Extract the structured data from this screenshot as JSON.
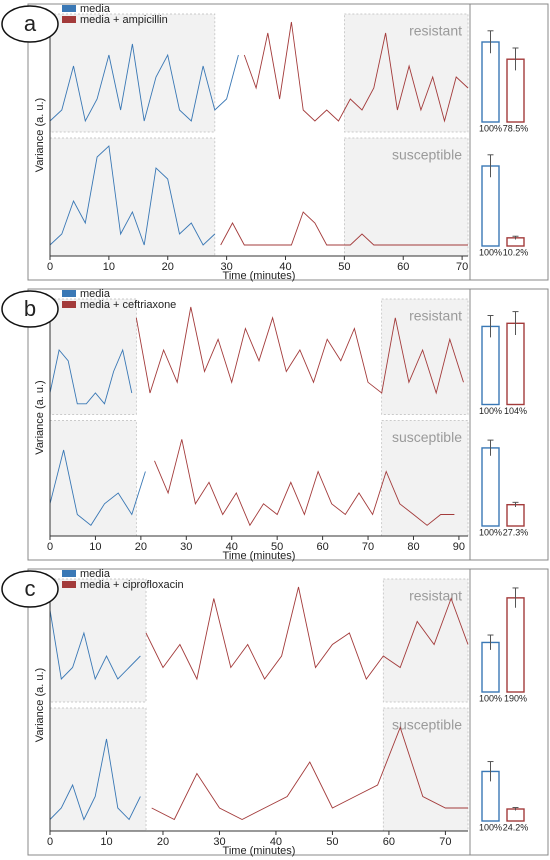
{
  "chart_data": [
    {
      "type": "line",
      "label": "a",
      "x_label": "Time (minutes)",
      "y_label": "Variance (a. u.)",
      "xlim": [
        0,
        71
      ],
      "xticks": [
        0,
        10,
        20,
        30,
        40,
        50,
        60,
        70
      ],
      "ylim": [
        0,
        10
      ],
      "legend": [
        {
          "name": "media",
          "color": "#3a78b5"
        },
        {
          "name": "media + ampicillin",
          "color": "#a33b3b"
        }
      ],
      "rows": [
        {
          "label": "resistant",
          "shaded": [
            [
              0,
              28
            ],
            [
              50,
              71
            ]
          ],
          "series": [
            {
              "x": [
                0,
                2,
                4,
                6,
                8,
                10,
                12,
                14,
                16,
                18,
                20,
                22,
                24,
                26,
                28,
                30,
                32
              ],
              "values": [
                1,
                2,
                6,
                1,
                3,
                7,
                2,
                8,
                1,
                5,
                7,
                2,
                1,
                6,
                2,
                3,
                7
              ]
            },
            {
              "x": [
                33,
                35,
                37,
                39,
                41,
                43,
                45,
                47,
                49,
                51,
                53,
                55,
                57,
                59,
                61,
                63,
                65,
                67,
                69,
                71
              ],
              "values": [
                7,
                4,
                9,
                3,
                10,
                2,
                1,
                2,
                1,
                3,
                2,
                4,
                9,
                2,
                6,
                2,
                5,
                1,
                5,
                4
              ]
            }
          ]
        },
        {
          "label": "susceptible",
          "shaded": [
            [
              0,
              28
            ],
            [
              50,
              71
            ]
          ],
          "series": [
            {
              "x": [
                0,
                2,
                4,
                6,
                8,
                10,
                12,
                14,
                16,
                18,
                20,
                22,
                24,
                26,
                28
              ],
              "values": [
                1,
                2,
                5,
                3,
                9,
                10,
                2,
                4,
                1,
                8,
                7,
                2,
                3,
                1,
                2
              ]
            },
            {
              "x": [
                29,
                31,
                33,
                35,
                37,
                39,
                41,
                43,
                45,
                47,
                49,
                51,
                53,
                55,
                57,
                59,
                61,
                63,
                65,
                67,
                69,
                71
              ],
              "values": [
                1,
                3,
                1,
                1,
                1,
                1,
                1,
                4,
                3,
                1,
                1,
                1,
                2,
                1,
                1,
                1,
                1,
                1,
                1,
                1,
                1,
                1
              ]
            }
          ]
        }
      ],
      "bars": {
        "type": "bar",
        "ylim": [
          0,
          130
        ],
        "rows": [
          {
            "values": [
              100,
              78.5
            ],
            "value_labels": [
              "100%",
              "78.5%"
            ],
            "errors": [
              14,
              14
            ]
          },
          {
            "values": [
              100,
              10.2
            ],
            "value_labels": [
              "100%",
              "10.2%"
            ],
            "errors": [
              14,
              2
            ]
          }
        ]
      }
    },
    {
      "type": "line",
      "label": "b",
      "x_label": "Time (minutes)",
      "y_label": "Variance (a. u.)",
      "xlim": [
        0,
        92
      ],
      "xticks": [
        0,
        10,
        20,
        30,
        40,
        50,
        60,
        70,
        80,
        90
      ],
      "ylim": [
        0,
        10
      ],
      "legend": [
        {
          "name": "media",
          "color": "#3a78b5"
        },
        {
          "name": "media + ceftriaxone",
          "color": "#a33b3b"
        }
      ],
      "rows": [
        {
          "label": "resistant",
          "shaded": [
            [
              0,
              19
            ],
            [
              73,
              92
            ]
          ],
          "series": [
            {
              "x": [
                0,
                2,
                4,
                6,
                8,
                10,
                12,
                14,
                16,
                18
              ],
              "values": [
                2,
                6,
                5,
                1,
                1,
                2,
                1,
                4,
                6,
                2
              ]
            },
            {
              "x": [
                19,
                22,
                25,
                28,
                31,
                34,
                37,
                40,
                43,
                46,
                49,
                52,
                55,
                58,
                61,
                64,
                67,
                70,
                73,
                76,
                79,
                82,
                85,
                88,
                91
              ],
              "values": [
                9,
                2,
                6,
                3,
                10,
                4,
                7,
                3,
                8,
                5,
                9,
                4,
                6,
                3,
                7,
                5,
                8,
                3,
                2,
                9,
                3,
                6,
                2,
                7,
                3
              ]
            }
          ]
        },
        {
          "label": "susceptible",
          "shaded": [
            [
              0,
              19
            ],
            [
              73,
              92
            ]
          ],
          "series": [
            {
              "x": [
                0,
                3,
                6,
                9,
                12,
                15,
                18,
                21
              ],
              "values": [
                3,
                8,
                2,
                1,
                3,
                4,
                2,
                6
              ]
            },
            {
              "x": [
                23,
                26,
                29,
                32,
                35,
                38,
                41,
                44,
                47,
                50,
                53,
                56,
                59,
                62,
                65,
                68,
                71,
                74,
                77,
                80,
                83,
                86,
                89
              ],
              "values": [
                7,
                4,
                9,
                3,
                5,
                2,
                4,
                1,
                3,
                2,
                5,
                2,
                6,
                3,
                2,
                4,
                2,
                6,
                3,
                2,
                1,
                2,
                2
              ]
            }
          ]
        }
      ],
      "bars": {
        "type": "bar",
        "ylim": [
          0,
          130
        ],
        "rows": [
          {
            "values": [
              100,
              104
            ],
            "value_labels": [
              "100%",
              "104%"
            ],
            "errors": [
              14,
              15
            ]
          },
          {
            "values": [
              100,
              27.3
            ],
            "value_labels": [
              "100%",
              "27.3%"
            ],
            "errors": [
              10,
              3
            ]
          }
        ]
      }
    },
    {
      "type": "line",
      "label": "c",
      "x_label": "Time (minutes)",
      "y_label": "Variance (a. u.)",
      "xlim": [
        0,
        74
      ],
      "xticks": [
        0,
        10,
        20,
        30,
        40,
        50,
        60,
        70
      ],
      "ylim": [
        0,
        10
      ],
      "legend": [
        {
          "name": "media",
          "color": "#3a78b5"
        },
        {
          "name": "media + ciprofloxacin",
          "color": "#a33b3b"
        }
      ],
      "rows": [
        {
          "label": "resistant",
          "shaded": [
            [
              0,
              17
            ],
            [
              59,
              74
            ]
          ],
          "series": [
            {
              "x": [
                0,
                2,
                4,
                6,
                8,
                10,
                12,
                14,
                16
              ],
              "values": [
                8,
                2,
                3,
                6,
                2,
                4,
                2,
                3,
                4
              ]
            },
            {
              "x": [
                17,
                20,
                23,
                26,
                29,
                32,
                35,
                38,
                41,
                44,
                47,
                50,
                53,
                56,
                59,
                62,
                65,
                68,
                71,
                74
              ],
              "values": [
                6,
                3,
                5,
                2,
                9,
                3,
                5,
                2,
                4,
                10,
                3,
                5,
                6,
                2,
                4,
                3,
                7,
                5,
                9,
                5
              ]
            }
          ]
        },
        {
          "label": "susceptible",
          "shaded": [
            [
              0,
              17
            ],
            [
              59,
              74
            ]
          ],
          "series": [
            {
              "x": [
                0,
                2,
                4,
                6,
                8,
                10,
                12,
                14,
                16
              ],
              "values": [
                1,
                2,
                4,
                1,
                3,
                8,
                2,
                1,
                3
              ]
            },
            {
              "x": [
                18,
                22,
                26,
                30,
                34,
                38,
                42,
                46,
                50,
                54,
                58,
                62,
                66,
                70,
                74
              ],
              "values": [
                2,
                1,
                5,
                2,
                1,
                2,
                3,
                6,
                2,
                3,
                4,
                9,
                3,
                2,
                2
              ]
            }
          ]
        }
      ],
      "bars": {
        "type": "bar",
        "ylim": [
          0,
          220
        ],
        "rows": [
          {
            "values": [
              100,
              190
            ],
            "value_labels": [
              "100%",
              "190%"
            ],
            "errors": [
              15,
              20
            ]
          },
          {
            "values": [
              100,
              24.2
            ],
            "value_labels": [
              "100%",
              "24.2%"
            ],
            "errors": [
              20,
              3
            ]
          }
        ]
      }
    }
  ]
}
